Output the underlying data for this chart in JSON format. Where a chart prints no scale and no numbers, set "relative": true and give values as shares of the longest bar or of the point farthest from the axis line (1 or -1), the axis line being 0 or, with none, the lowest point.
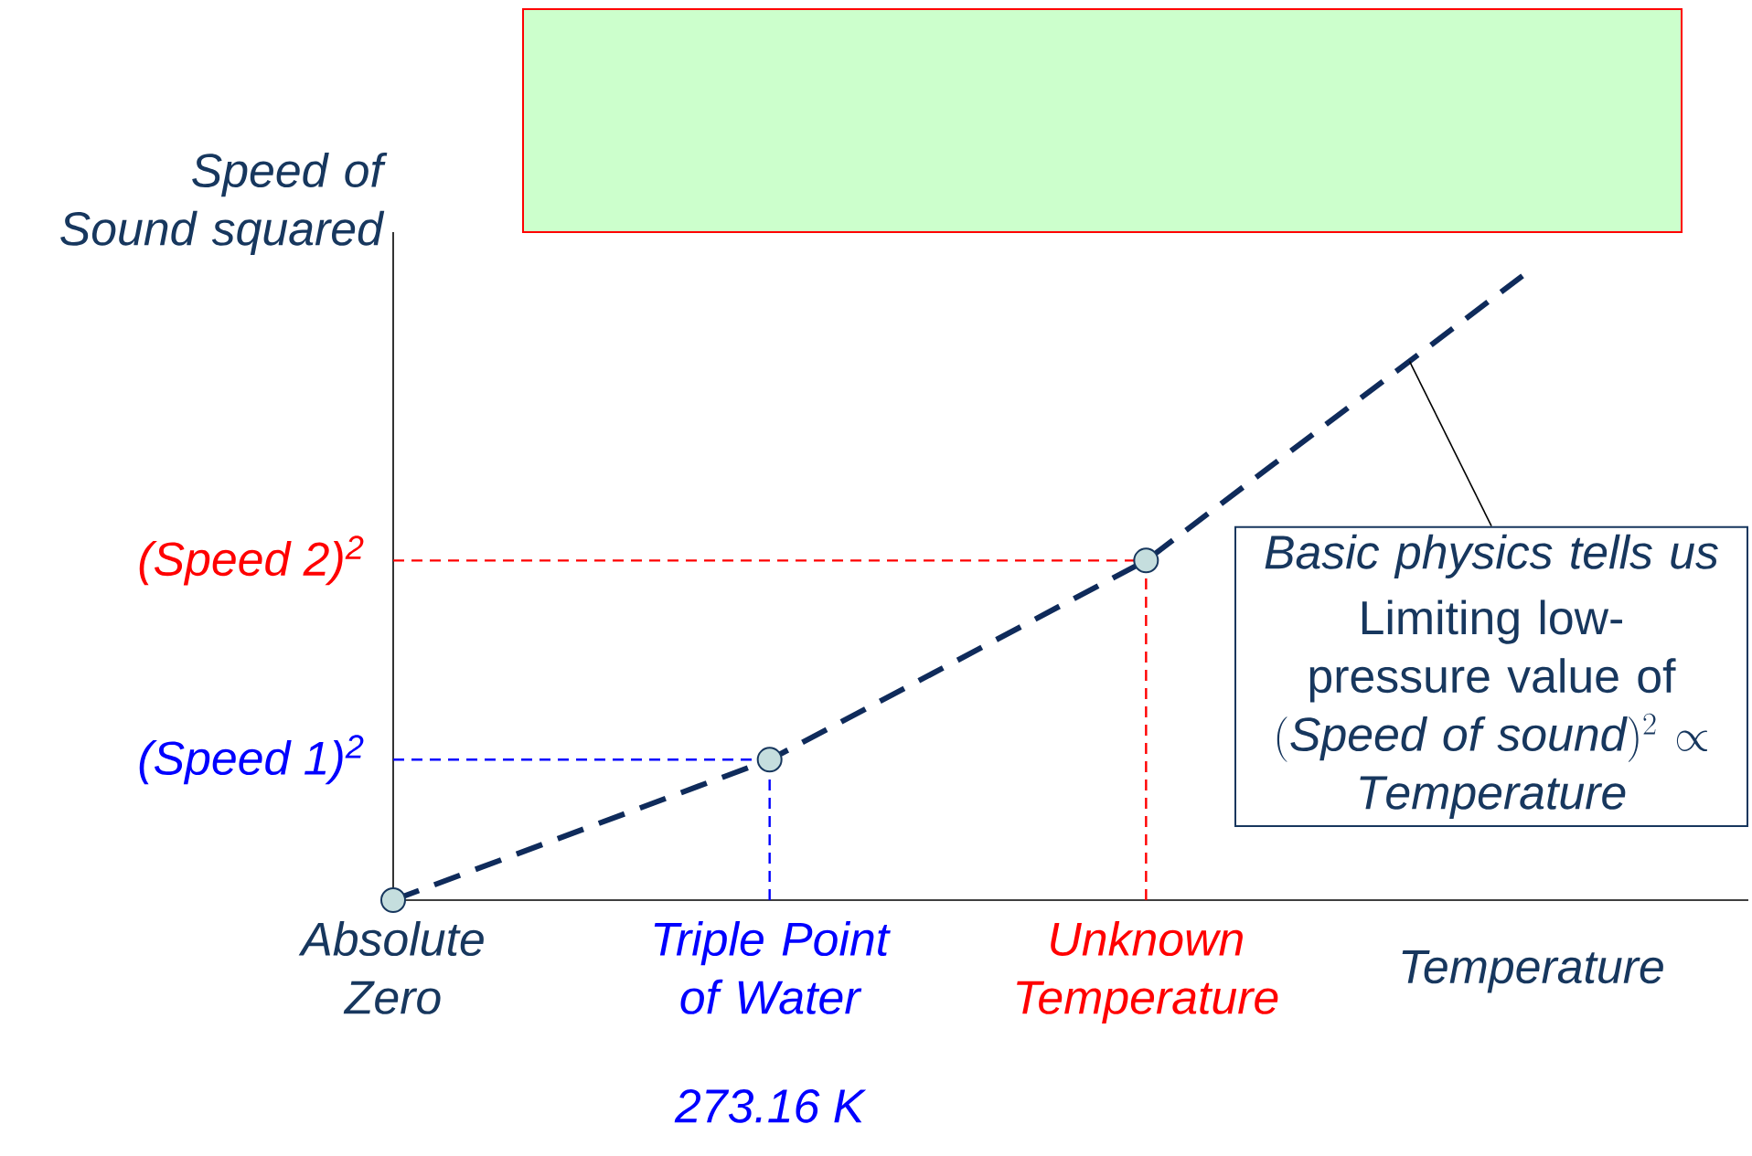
{
  "chart_data": {
    "type": "line",
    "relative": true,
    "ylabel": "Speed of Sound squared",
    "xlabel": "Temperature",
    "categories": [
      "Absolute Zero",
      "Triple Point of Water",
      "Unknown Temperature",
      null
    ],
    "series": [
      {
        "values": [
          0,
          0.225,
          0.544,
          1
        ],
        "color": "#0f2b5b",
        "line_style": "dashed",
        "marker": "none"
      },
      {
        "type": "scatter",
        "values": [
          0,
          0.225,
          0.544,
          null
        ],
        "color": "#c5dede",
        "marker": "circle"
      }
    ],
    "ref_lines": [
      {
        "axis": "y",
        "value": 0.225,
        "label": "(Speed 1)$^{2}$",
        "color": "#0000ff",
        "line_style": "dashed"
      },
      {
        "axis": "y",
        "value": 0.544,
        "label": "(Speed 2)$^{2}$",
        "color": "#ff0000",
        "line_style": "dashed"
      }
    ],
    "annotations": [
      "Basic physics tells us",
      "Limiting low-pressure value of",
      "(\\mathit{Speed\\ of\\ sound})^{2}\\propto \\mathit{Temperature}",
      "273.16 K"
    ]
  }
}
